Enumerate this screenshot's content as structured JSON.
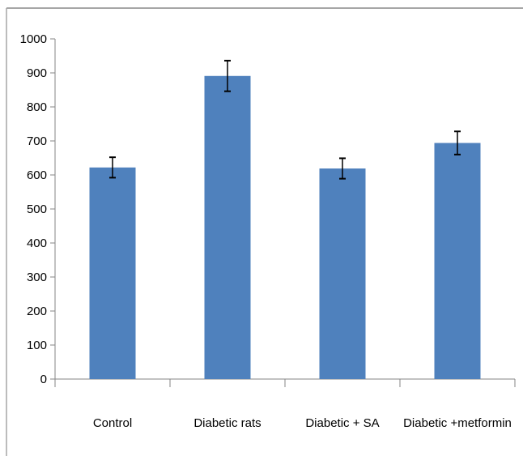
{
  "chart_data": {
    "type": "bar",
    "title": "",
    "xlabel": "",
    "ylabel": "",
    "categories": [
      "Control",
      "Diabetic rats",
      "Diabetic + SA",
      "Diabetic +metformin"
    ],
    "values": [
      622,
      891,
      619,
      694
    ],
    "errors": [
      30,
      45,
      30,
      34
    ],
    "ylim": [
      0,
      1000
    ],
    "yticks": [
      "0",
      "100",
      "200",
      "300",
      "400",
      "500",
      "600",
      "700",
      "800",
      "900",
      "1000"
    ],
    "grid": false,
    "legend": "none",
    "colors": {
      "bar": "#4f81bd",
      "axis": "#868686",
      "frame": "#a6a6a6"
    }
  }
}
